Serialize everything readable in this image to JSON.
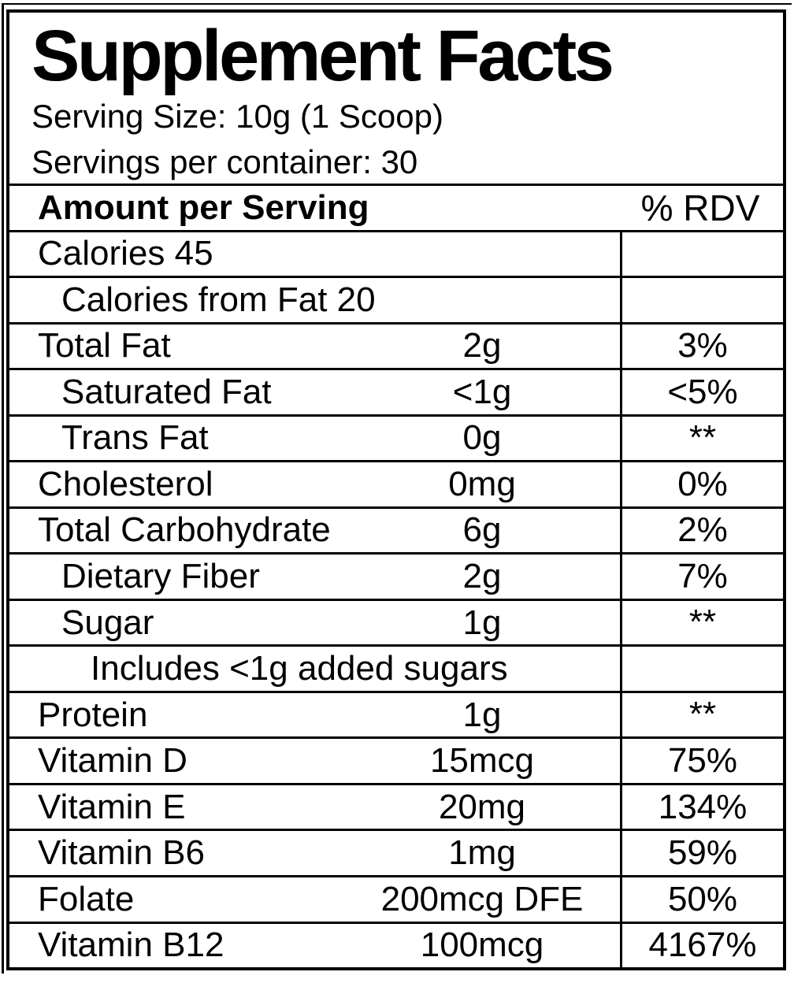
{
  "header": {
    "title": "Supplement Facts",
    "serving_size": "Serving Size: 10g (1 Scoop)",
    "servings_per_container": "Servings per container: 30"
  },
  "table": {
    "header": {
      "amount_label": "Amount per Serving",
      "rdv_label": "% RDV"
    },
    "rows": [
      {
        "label": "Calories 45",
        "indent": 0,
        "amount": "",
        "rdv": ""
      },
      {
        "label": "Calories from Fat 20",
        "indent": 1,
        "amount": "",
        "rdv": ""
      },
      {
        "label": "Total Fat",
        "indent": 0,
        "amount": "2g",
        "rdv": "3%"
      },
      {
        "label": "Saturated Fat",
        "indent": 1,
        "amount": "<1g",
        "rdv": "<5%"
      },
      {
        "label": "Trans Fat",
        "indent": 1,
        "amount": "0g",
        "rdv": "**"
      },
      {
        "label": "Cholesterol",
        "indent": 0,
        "amount": "0mg",
        "rdv": "0%"
      },
      {
        "label": "Total Carbohydrate",
        "indent": 0,
        "amount": "6g",
        "rdv": "2%"
      },
      {
        "label": "Dietary Fiber",
        "indent": 1,
        "amount": "2g",
        "rdv": "7%"
      },
      {
        "label": "Sugar",
        "indent": 1,
        "amount": "1g",
        "rdv": "**"
      },
      {
        "label": "Includes <1g added sugars",
        "indent": 2,
        "amount": "",
        "rdv": ""
      },
      {
        "label": "Protein",
        "indent": 0,
        "amount": "1g",
        "rdv": "**"
      },
      {
        "label": "Vitamin D",
        "indent": 0,
        "amount": "15mcg",
        "rdv": "75%"
      },
      {
        "label": "Vitamin E",
        "indent": 0,
        "amount": "20mg",
        "rdv": "134%"
      },
      {
        "label": "Vitamin B6",
        "indent": 0,
        "amount": "1mg",
        "rdv": "59%"
      },
      {
        "label": "Folate",
        "indent": 0,
        "amount": "200mcg DFE",
        "rdv": "50%"
      },
      {
        "label": "Vitamin B12",
        "indent": 0,
        "amount": "100mcg",
        "rdv": "4167%"
      }
    ]
  },
  "colors": {
    "text": "#000000",
    "background": "#ffffff",
    "border": "#000000"
  }
}
